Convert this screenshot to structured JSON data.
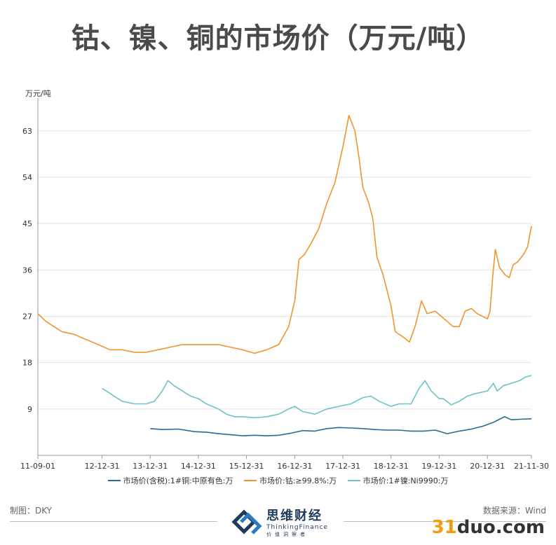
{
  "title": "钴、镍、铜的市场价（万元/吨）",
  "chart_data": {
    "type": "line",
    "ylabel": "万元/吨",
    "ylim": [
      0,
      68
    ],
    "yticks": [
      9,
      18,
      27,
      36,
      45,
      54,
      63
    ],
    "x_range": [
      "2011-09-01",
      "2021-11-30"
    ],
    "xtick_labels": [
      "11-09-01",
      "12-12-31",
      "13-12-31",
      "14-12-31",
      "15-12-31",
      "16-12-31",
      "17-12-31",
      "18-12-31",
      "19-12-31",
      "20-12-31",
      "21-11-30"
    ],
    "xtick_dates": [
      "2011-09-01",
      "2012-12-31",
      "2013-12-31",
      "2014-12-31",
      "2015-12-31",
      "2016-12-31",
      "2017-12-31",
      "2018-12-31",
      "2019-12-31",
      "2020-12-31",
      "2021-11-30"
    ],
    "series": [
      {
        "name": "市场价(含税):1#铜:中原有色:万",
        "color": "#2b6a94",
        "points": [
          [
            "2014-01-01",
            5.2
          ],
          [
            "2014-04-01",
            5.0
          ],
          [
            "2014-08-01",
            5.1
          ],
          [
            "2014-12-01",
            4.6
          ],
          [
            "2015-03-01",
            4.5
          ],
          [
            "2015-06-01",
            4.2
          ],
          [
            "2015-09-01",
            4.0
          ],
          [
            "2015-12-01",
            3.8
          ],
          [
            "2016-03-01",
            3.9
          ],
          [
            "2016-06-01",
            3.8
          ],
          [
            "2016-09-01",
            3.9
          ],
          [
            "2016-12-01",
            4.3
          ],
          [
            "2017-03-01",
            4.8
          ],
          [
            "2017-06-01",
            4.7
          ],
          [
            "2017-09-01",
            5.2
          ],
          [
            "2017-12-01",
            5.4
          ],
          [
            "2018-03-01",
            5.3
          ],
          [
            "2018-06-01",
            5.2
          ],
          [
            "2018-09-01",
            5.0
          ],
          [
            "2018-12-01",
            4.9
          ],
          [
            "2019-03-01",
            4.9
          ],
          [
            "2019-06-01",
            4.7
          ],
          [
            "2019-09-01",
            4.7
          ],
          [
            "2019-12-01",
            4.9
          ],
          [
            "2020-03-01",
            4.2
          ],
          [
            "2020-06-01",
            4.7
          ],
          [
            "2020-09-01",
            5.1
          ],
          [
            "2020-12-01",
            5.7
          ],
          [
            "2021-02-15",
            6.4
          ],
          [
            "2021-05-10",
            7.5
          ],
          [
            "2021-07-01",
            6.9
          ],
          [
            "2021-09-01",
            7.0
          ],
          [
            "2021-11-30",
            7.1
          ]
        ]
      },
      {
        "name": "市场价:钴:≥99.8%:万",
        "color": "#f0952e",
        "points": [
          [
            "2011-09-01",
            27.5
          ],
          [
            "2011-11-01",
            26.0
          ],
          [
            "2012-01-01",
            25.0
          ],
          [
            "2012-03-01",
            24.0
          ],
          [
            "2012-06-01",
            23.5
          ],
          [
            "2012-09-01",
            22.5
          ],
          [
            "2012-12-01",
            21.5
          ],
          [
            "2013-03-01",
            20.5
          ],
          [
            "2013-06-01",
            20.5
          ],
          [
            "2013-09-01",
            20.0
          ],
          [
            "2013-12-01",
            20.0
          ],
          [
            "2014-03-01",
            20.5
          ],
          [
            "2014-06-01",
            21.0
          ],
          [
            "2014-09-01",
            21.5
          ],
          [
            "2014-12-01",
            21.5
          ],
          [
            "2015-03-01",
            21.5
          ],
          [
            "2015-06-01",
            21.5
          ],
          [
            "2015-09-01",
            21.0
          ],
          [
            "2015-12-01",
            20.5
          ],
          [
            "2016-03-01",
            19.8
          ],
          [
            "2016-06-01",
            20.5
          ],
          [
            "2016-09-01",
            21.5
          ],
          [
            "2016-11-15",
            25.0
          ],
          [
            "2016-12-31",
            30.0
          ],
          [
            "2017-02-01",
            38.0
          ],
          [
            "2017-03-15",
            39.0
          ],
          [
            "2017-05-01",
            41.0
          ],
          [
            "2017-07-01",
            44.0
          ],
          [
            "2017-09-01",
            49.0
          ],
          [
            "2017-11-01",
            53.0
          ],
          [
            "2018-01-01",
            60.0
          ],
          [
            "2018-02-15",
            66.0
          ],
          [
            "2018-04-01",
            63.0
          ],
          [
            "2018-05-01",
            58.0
          ],
          [
            "2018-06-01",
            52.0
          ],
          [
            "2018-07-15",
            49.0
          ],
          [
            "2018-08-15",
            46.0
          ],
          [
            "2018-09-15",
            38.5
          ],
          [
            "2018-11-01",
            35.0
          ],
          [
            "2018-12-31",
            29.0
          ],
          [
            "2019-02-01",
            24.0
          ],
          [
            "2019-04-01",
            23.0
          ],
          [
            "2019-05-20",
            22.0
          ],
          [
            "2019-07-01",
            25.0
          ],
          [
            "2019-08-20",
            30.0
          ],
          [
            "2019-10-01",
            27.5
          ],
          [
            "2019-12-01",
            28.0
          ],
          [
            "2020-01-15",
            27.0
          ],
          [
            "2020-03-01",
            26.0
          ],
          [
            "2020-04-15",
            25.0
          ],
          [
            "2020-06-01",
            25.0
          ],
          [
            "2020-07-15",
            28.0
          ],
          [
            "2020-09-01",
            28.5
          ],
          [
            "2020-10-15",
            27.5
          ],
          [
            "2020-12-31",
            26.5
          ],
          [
            "2021-01-20",
            28.0
          ],
          [
            "2021-02-10",
            35.0
          ],
          [
            "2021-03-01",
            40.0
          ],
          [
            "2021-04-01",
            36.5
          ],
          [
            "2021-05-15",
            35.0
          ],
          [
            "2021-06-15",
            34.5
          ],
          [
            "2021-07-15",
            37.0
          ],
          [
            "2021-08-15",
            37.5
          ],
          [
            "2021-10-01",
            39.0
          ],
          [
            "2021-11-01",
            40.5
          ],
          [
            "2021-11-30",
            44.5
          ]
        ]
      },
      {
        "name": "市场价:1#镍:Ni9990:万",
        "color": "#6cc4c8",
        "points": [
          [
            "2012-12-31",
            13.0
          ],
          [
            "2013-02-01",
            12.5
          ],
          [
            "2013-04-01",
            11.5
          ],
          [
            "2013-06-01",
            10.5
          ],
          [
            "2013-09-01",
            10.0
          ],
          [
            "2013-12-01",
            10.0
          ],
          [
            "2014-02-01",
            10.5
          ],
          [
            "2014-04-01",
            12.5
          ],
          [
            "2014-05-15",
            14.5
          ],
          [
            "2014-07-01",
            13.5
          ],
          [
            "2014-09-01",
            12.5
          ],
          [
            "2014-11-01",
            11.5
          ],
          [
            "2015-01-01",
            11.0
          ],
          [
            "2015-03-01",
            10.0
          ],
          [
            "2015-06-01",
            9.0
          ],
          [
            "2015-08-01",
            8.0
          ],
          [
            "2015-10-01",
            7.5
          ],
          [
            "2015-12-01",
            7.5
          ],
          [
            "2016-03-01",
            7.3
          ],
          [
            "2016-06-01",
            7.5
          ],
          [
            "2016-09-01",
            8.0
          ],
          [
            "2016-11-15",
            9.0
          ],
          [
            "2016-12-31",
            9.5
          ],
          [
            "2017-03-01",
            8.5
          ],
          [
            "2017-06-01",
            8.0
          ],
          [
            "2017-09-01",
            9.0
          ],
          [
            "2017-12-01",
            9.5
          ],
          [
            "2018-03-01",
            10.0
          ],
          [
            "2018-06-01",
            11.2
          ],
          [
            "2018-08-01",
            11.5
          ],
          [
            "2018-10-01",
            10.5
          ],
          [
            "2018-12-31",
            9.5
          ],
          [
            "2019-03-01",
            10.0
          ],
          [
            "2019-06-01",
            10.0
          ],
          [
            "2019-08-01",
            13.0
          ],
          [
            "2019-09-15",
            14.5
          ],
          [
            "2019-11-01",
            12.5
          ],
          [
            "2019-12-31",
            11.0
          ],
          [
            "2020-02-01",
            11.0
          ],
          [
            "2020-04-01",
            9.8
          ],
          [
            "2020-06-01",
            10.5
          ],
          [
            "2020-08-01",
            11.5
          ],
          [
            "2020-10-01",
            12.0
          ],
          [
            "2020-12-31",
            12.5
          ],
          [
            "2021-02-15",
            14.0
          ],
          [
            "2021-03-15",
            12.5
          ],
          [
            "2021-05-01",
            13.5
          ],
          [
            "2021-07-01",
            14.0
          ],
          [
            "2021-09-01",
            14.5
          ],
          [
            "2021-10-15",
            15.2
          ],
          [
            "2021-11-30",
            15.5
          ]
        ]
      }
    ]
  },
  "footer": {
    "maker": "制图：DKY",
    "source": "数据来源：Wind",
    "logo_cn": "思维财经",
    "logo_en": "ThinkingFinance",
    "logo_sub": "价值洞察者",
    "watermark_num": "31",
    "watermark_rest": "duo.com"
  }
}
